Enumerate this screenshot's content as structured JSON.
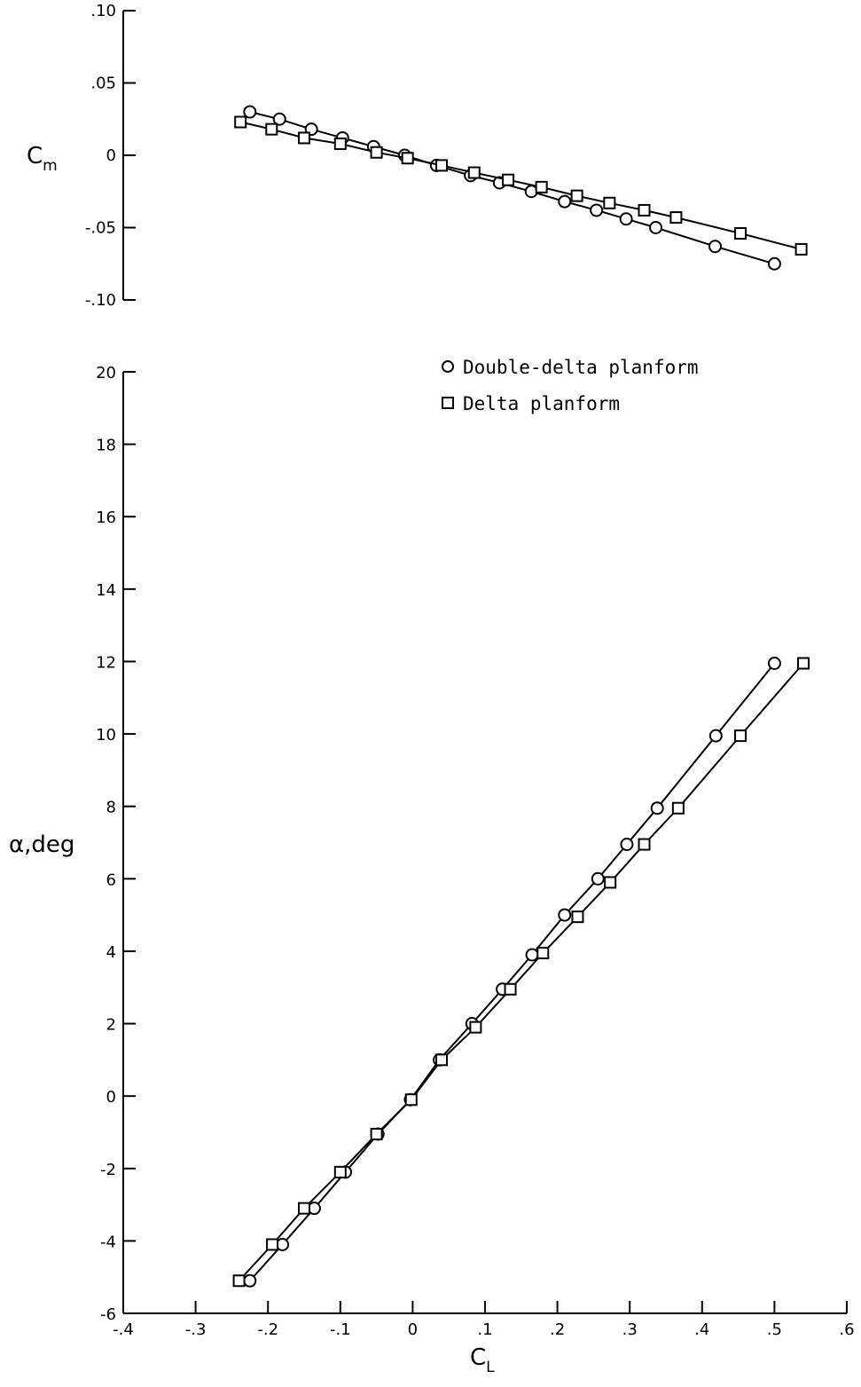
{
  "chart_data": [
    {
      "type": "line",
      "ylabel": "C",
      "ylabel_subscript": "m",
      "xlim": [
        -0.4,
        0.6
      ],
      "ylim": [
        -0.1,
        0.1
      ],
      "y_ticks": [
        ".10",
        ".05",
        "0",
        "-.05",
        "-.10"
      ],
      "y_tick_values": [
        0.1,
        0.05,
        0,
        -0.05,
        -0.1
      ],
      "grid": false,
      "series": [
        {
          "name": "Double-delta planform",
          "marker": "circle",
          "x": [
            -0.225,
            -0.184,
            -0.14,
            -0.097,
            -0.054,
            -0.011,
            0.033,
            0.08,
            0.12,
            0.164,
            0.21,
            0.254,
            0.295,
            0.336,
            0.418,
            0.5
          ],
          "y": [
            0.03,
            0.025,
            0.018,
            0.012,
            0.006,
            0.0,
            -0.007,
            -0.014,
            -0.019,
            -0.025,
            -0.032,
            -0.038,
            -0.044,
            -0.05,
            -0.063,
            -0.075
          ]
        },
        {
          "name": "Delta planform",
          "marker": "square",
          "x": [
            -0.238,
            -0.195,
            -0.15,
            -0.1,
            -0.05,
            -0.007,
            0.04,
            0.085,
            0.132,
            0.178,
            0.227,
            0.272,
            0.32,
            0.364,
            0.453,
            0.537
          ],
          "y": [
            0.023,
            0.018,
            0.012,
            0.008,
            0.002,
            -0.002,
            -0.007,
            -0.012,
            -0.017,
            -0.022,
            -0.028,
            -0.033,
            -0.038,
            -0.043,
            -0.054,
            -0.065
          ]
        }
      ]
    },
    {
      "type": "line",
      "xlabel": "C",
      "xlabel_subscript": "L",
      "ylabel": "α,deg",
      "xlim": [
        -0.4,
        0.6
      ],
      "ylim": [
        -6,
        20
      ],
      "x_ticks": [
        "-.4",
        "-.3",
        "-.2",
        "-.1",
        "0",
        ".1",
        ".2",
        ".3",
        ".4",
        ".5",
        ".6"
      ],
      "x_tick_values": [
        -0.4,
        -0.3,
        -0.2,
        -0.1,
        0,
        0.1,
        0.2,
        0.3,
        0.4,
        0.5,
        0.6
      ],
      "y_ticks": [
        "20",
        "18",
        "16",
        "14",
        "12",
        "10",
        "8",
        "6",
        "4",
        "2",
        "0",
        "-2",
        "-4",
        "-6"
      ],
      "y_tick_values": [
        20,
        18,
        16,
        14,
        12,
        10,
        8,
        6,
        4,
        2,
        0,
        -2,
        -4,
        -6
      ],
      "grid": false,
      "legend_position": "top-right",
      "series": [
        {
          "name": "Double-delta planform",
          "marker": "circle",
          "x": [
            -0.225,
            -0.18,
            -0.136,
            -0.093,
            -0.048,
            -0.003,
            0.037,
            0.082,
            0.124,
            0.165,
            0.21,
            0.256,
            0.296,
            0.338,
            0.419,
            0.5
          ],
          "y": [
            -5.1,
            -4.1,
            -3.1,
            -2.1,
            -1.05,
            -0.1,
            1.0,
            2.0,
            2.95,
            3.9,
            5.0,
            6.0,
            6.95,
            7.95,
            9.95,
            11.95
          ]
        },
        {
          "name": "Delta planform",
          "marker": "square",
          "x": [
            -0.24,
            -0.194,
            -0.15,
            -0.1,
            -0.05,
            -0.002,
            0.04,
            0.087,
            0.135,
            0.18,
            0.228,
            0.273,
            0.32,
            0.367,
            0.453,
            0.54
          ],
          "y": [
            -5.1,
            -4.1,
            -3.1,
            -2.1,
            -1.05,
            -0.1,
            1.0,
            1.9,
            2.95,
            3.95,
            4.95,
            5.9,
            6.95,
            7.95,
            9.95,
            11.95
          ]
        }
      ]
    }
  ]
}
